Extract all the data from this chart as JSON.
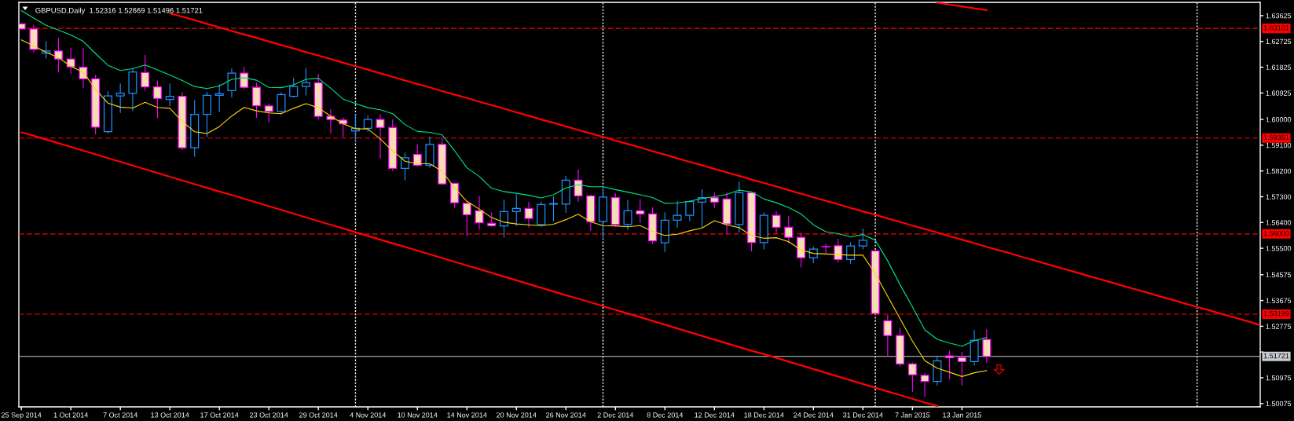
{
  "chart_data": {
    "type": "candlestick",
    "title": "GBPUSD,Daily  1.52316 1.52669 1.51496 1.51721",
    "categories": [
      "25 Sep 2014",
      null,
      null,
      null,
      "1 Oct 2014",
      null,
      null,
      null,
      "7 Oct 2014",
      null,
      null,
      null,
      "13 Oct 2014",
      null,
      null,
      null,
      "17 Oct 2014",
      null,
      null,
      null,
      "23 Oct 2014",
      null,
      null,
      null,
      "29 Oct 2014",
      null,
      null,
      null,
      "4 Nov 2014",
      null,
      null,
      null,
      "10 Nov 2014",
      null,
      null,
      null,
      "14 Nov 2014",
      null,
      null,
      null,
      "20 Nov 2014",
      null,
      null,
      null,
      "26 Nov 2014",
      null,
      null,
      null,
      "2 Dec 2014",
      null,
      null,
      null,
      "8 Dec 2014",
      null,
      null,
      null,
      "12 Dec 2014",
      null,
      null,
      null,
      "18 Dec 2014",
      null,
      null,
      null,
      "24 Dec 2014",
      null,
      null,
      null,
      "31 Dec 2014",
      null,
      null,
      null,
      "7 Jan 2015",
      null,
      null,
      null,
      "13 Jan 2015",
      null,
      null,
      null,
      null,
      null,
      null,
      null,
      null,
      null,
      null,
      null,
      null,
      null,
      null,
      null,
      null,
      null,
      null,
      null,
      null,
      null,
      null,
      null,
      null
    ],
    "ohlc": [
      [
        1.6334,
        1.6337,
        1.6314,
        1.6316
      ],
      [
        1.6316,
        1.633,
        1.6234,
        1.6245
      ],
      [
        1.6232,
        1.6274,
        1.6213,
        1.6239
      ],
      [
        1.6239,
        1.6285,
        1.6164,
        1.6211
      ],
      [
        1.6211,
        1.625,
        1.6159,
        1.6184
      ],
      [
        1.6182,
        1.625,
        1.6109,
        1.6142
      ],
      [
        1.6142,
        1.6156,
        1.5948,
        1.5973
      ],
      [
        1.5957,
        1.6098,
        1.5951,
        1.6082
      ],
      [
        1.6082,
        1.6126,
        1.6023,
        1.6092
      ],
      [
        1.6092,
        1.618,
        1.603,
        1.6166
      ],
      [
        1.6164,
        1.6225,
        1.61,
        1.6114
      ],
      [
        1.6114,
        1.6136,
        1.6004,
        1.6073
      ],
      [
        1.607,
        1.6126,
        1.6047,
        1.6081
      ],
      [
        1.6081,
        1.6096,
        1.5894,
        1.5901
      ],
      [
        1.5901,
        1.6068,
        1.587,
        1.6018
      ],
      [
        1.6018,
        1.6096,
        1.5939,
        1.6084
      ],
      [
        1.6084,
        1.6123,
        1.6026,
        1.609
      ],
      [
        1.6101,
        1.6178,
        1.6077,
        1.6162
      ],
      [
        1.6162,
        1.6184,
        1.6106,
        1.6112
      ],
      [
        1.6112,
        1.6128,
        1.6006,
        1.6048
      ],
      [
        1.6047,
        1.6056,
        1.599,
        1.6028
      ],
      [
        1.6028,
        1.6095,
        1.6018,
        1.6087
      ],
      [
        1.6081,
        1.6145,
        1.6077,
        1.6115
      ],
      [
        1.6115,
        1.618,
        1.6084,
        1.6128
      ],
      [
        1.6128,
        1.6159,
        1.6,
        1.6011
      ],
      [
        1.6011,
        1.6035,
        1.595,
        1.6
      ],
      [
        1.5998,
        1.6007,
        1.5939,
        1.5985
      ],
      [
        1.596,
        1.6018,
        1.5923,
        1.5969
      ],
      [
        1.5969,
        1.6014,
        1.5957,
        1.6
      ],
      [
        1.6,
        1.6018,
        1.5864,
        1.5972
      ],
      [
        1.5972,
        1.6,
        1.582,
        1.5829
      ],
      [
        1.5829,
        1.5884,
        1.5787,
        1.5866
      ],
      [
        1.5878,
        1.5913,
        1.5835,
        1.584
      ],
      [
        1.584,
        1.594,
        1.5831,
        1.5913
      ],
      [
        1.5913,
        1.5937,
        1.5772,
        1.5775
      ],
      [
        1.5777,
        1.5777,
        1.5692,
        1.5709
      ],
      [
        1.5707,
        1.5707,
        1.5592,
        1.5667
      ],
      [
        1.5681,
        1.5732,
        1.5615,
        1.5639
      ],
      [
        1.5637,
        1.5676,
        1.5625,
        1.5629
      ],
      [
        1.5628,
        1.572,
        1.5587,
        1.5678
      ],
      [
        1.5678,
        1.5738,
        1.5628,
        1.5689
      ],
      [
        1.5689,
        1.5713,
        1.5623,
        1.5654
      ],
      [
        1.5633,
        1.5713,
        1.5626,
        1.5703
      ],
      [
        1.5704,
        1.5731,
        1.5644,
        1.5706
      ],
      [
        1.5704,
        1.5803,
        1.5674,
        1.5788
      ],
      [
        1.5788,
        1.5825,
        1.5713,
        1.5733
      ],
      [
        1.5733,
        1.5738,
        1.5611,
        1.5643
      ],
      [
        1.5644,
        1.5768,
        1.5582,
        1.5729
      ],
      [
        1.5727,
        1.5742,
        1.5626,
        1.5633
      ],
      [
        1.5633,
        1.5718,
        1.5614,
        1.5681
      ],
      [
        1.5681,
        1.5722,
        1.5638,
        1.567
      ],
      [
        1.567,
        1.5693,
        1.5565,
        1.5576
      ],
      [
        1.5569,
        1.5676,
        1.5537,
        1.5648
      ],
      [
        1.5648,
        1.5715,
        1.5622,
        1.5665
      ],
      [
        1.5665,
        1.5718,
        1.5644,
        1.5713
      ],
      [
        1.5711,
        1.5756,
        1.5622,
        1.5727
      ],
      [
        1.5727,
        1.5745,
        1.569,
        1.5711
      ],
      [
        1.5722,
        1.5745,
        1.5598,
        1.5635
      ],
      [
        1.5633,
        1.5783,
        1.5605,
        1.5744
      ],
      [
        1.5744,
        1.5748,
        1.5539,
        1.557
      ],
      [
        1.557,
        1.5676,
        1.5546,
        1.5665
      ],
      [
        1.5665,
        1.5679,
        1.5603,
        1.5623
      ],
      [
        1.5623,
        1.5663,
        1.5567,
        1.5588
      ],
      [
        1.5588,
        1.5605,
        1.5483,
        1.5517
      ],
      [
        1.5517,
        1.5556,
        1.5498,
        1.5547
      ],
      [
        1.5556,
        1.5565,
        1.5532,
        1.5555
      ],
      [
        1.5559,
        1.5583,
        1.5501,
        1.5511
      ],
      [
        1.5511,
        1.5571,
        1.5496,
        1.5558
      ],
      [
        1.5558,
        1.5619,
        1.5546,
        1.5578
      ],
      [
        1.5541,
        1.5541,
        1.5321,
        1.5322
      ],
      [
        1.5297,
        1.5318,
        1.5172,
        1.5245
      ],
      [
        1.5245,
        1.5271,
        1.5137,
        1.5146
      ],
      [
        1.5146,
        1.5151,
        1.5049,
        1.5108
      ],
      [
        1.5106,
        1.5113,
        1.5031,
        1.5085
      ],
      [
        1.5085,
        1.5171,
        1.5071,
        1.5157
      ],
      [
        1.5174,
        1.5193,
        1.5093,
        1.5168
      ],
      [
        1.5168,
        1.5188,
        1.5071,
        1.5154
      ],
      [
        1.5154,
        1.5265,
        1.514,
        1.5228
      ],
      [
        1.52316,
        1.52669,
        1.51496,
        1.51721
      ],
      null,
      null,
      null,
      null,
      null,
      null,
      null,
      null,
      null,
      null,
      null,
      null,
      null,
      null,
      null,
      null,
      null,
      null,
      null,
      null,
      null,
      null
    ],
    "color": "#f5deb3",
    "colors": [
      "#ff00ff",
      "#ff00ff",
      "#1e90ff",
      "#ff00ff",
      "#ff00ff",
      "#ff00ff",
      "#ff00ff",
      "#1e90ff",
      "#1e90ff",
      "#1e90ff",
      "#ff00ff",
      "#ff00ff",
      "#1e90ff",
      "#ff00ff",
      "#1e90ff",
      "#1e90ff",
      "#1e90ff",
      "#1e90ff",
      "#ff00ff",
      "#ff00ff",
      "#ff00ff",
      "#1e90ff",
      "#1e90ff",
      "#1e90ff",
      "#ff00ff",
      "#ff00ff",
      "#ff00ff",
      "#1e90ff",
      "#1e90ff",
      "#ff00ff",
      "#ff00ff",
      "#1e90ff",
      "#ff00ff",
      "#1e90ff",
      "#ff00ff",
      "#ff00ff",
      "#ff00ff",
      "#ff00ff",
      "#ff00ff",
      "#1e90ff",
      "#1e90ff",
      "#ff00ff",
      "#1e90ff",
      "#1e90ff",
      "#1e90ff",
      "#ff00ff",
      "#ff00ff",
      "#1e90ff",
      "#ff00ff",
      "#1e90ff",
      "#ff00ff",
      "#ff00ff",
      "#1e90ff",
      "#1e90ff",
      "#1e90ff",
      "#1e90ff",
      "#ff00ff",
      "#ff00ff",
      "#1e90ff",
      "#ff00ff",
      "#1e90ff",
      "#ff00ff",
      "#ff00ff",
      "#ff00ff",
      "#1e90ff",
      "#ff00ff",
      "#ff00ff",
      "#1e90ff",
      "#1e90ff",
      "#ff00ff",
      "#ff00ff",
      "#ff00ff",
      "#ff00ff",
      "#ff00ff",
      "#1e90ff",
      "#ff00ff",
      "#ff00ff",
      "#1e90ff",
      "#ff00ff",
      null,
      null,
      null,
      null,
      null,
      null,
      null,
      null,
      null,
      null,
      null,
      null,
      null,
      null,
      null,
      null,
      null,
      null,
      null,
      null,
      null,
      null
    ],
    "series": [
      {
        "type": "line",
        "color": "#00e684",
        "values": [
          1.638,
          1.6354,
          1.6329,
          1.6312,
          1.6295,
          1.6273,
          1.623,
          1.6189,
          1.6171,
          1.6177,
          1.619,
          1.6173,
          1.6155,
          1.6136,
          1.6115,
          1.6108,
          1.6117,
          1.614,
          1.6146,
          1.6137,
          1.6112,
          1.6111,
          1.6121,
          1.614,
          1.6144,
          1.6109,
          1.6071,
          1.6056,
          1.6041,
          1.6034,
          1.602,
          1.5982,
          1.5958,
          1.5955,
          1.5946,
          1.5891,
          1.5831,
          1.5801,
          1.576,
          1.5748,
          1.5742,
          1.5735,
          1.5726,
          1.5737,
          1.5761,
          1.5772,
          1.5765,
          1.5765,
          1.5755,
          1.5746,
          1.5737,
          1.5727,
          1.5707,
          1.5708,
          1.5714,
          1.5724,
          1.573,
          1.5738,
          1.5753,
          1.5747,
          1.5722,
          1.5709,
          1.5692,
          1.567,
          1.5632,
          1.5608,
          1.5601,
          1.559,
          1.5598,
          1.5578,
          1.5506,
          1.5423,
          1.5345,
          1.5265,
          1.5232,
          1.5219,
          1.5208,
          1.5227,
          1.5239,
          null,
          null,
          null,
          null,
          null,
          null,
          null,
          null,
          null,
          null,
          null,
          null,
          null,
          null,
          null,
          null,
          null,
          null,
          null,
          null,
          null,
          null
        ]
      },
      {
        "type": "line",
        "color": "#ffd700",
        "values": [
          1.6278,
          1.6257,
          1.6235,
          1.6216,
          1.6186,
          1.6165,
          1.6105,
          1.6057,
          1.6043,
          1.604,
          1.606,
          1.6042,
          1.6039,
          1.5993,
          1.5957,
          1.5951,
          1.5975,
          1.6012,
          1.6042,
          1.603,
          1.6023,
          1.602,
          1.6039,
          1.6055,
          1.6041,
          1.6011,
          1.5985,
          1.5967,
          1.5967,
          1.5932,
          1.589,
          1.5854,
          1.5845,
          1.5845,
          1.5819,
          1.5761,
          1.5714,
          1.5687,
          1.5657,
          1.5641,
          1.5635,
          1.5632,
          1.5629,
          1.5634,
          1.565,
          1.5669,
          1.5642,
          1.5629,
          1.5628,
          1.5625,
          1.5629,
          1.5609,
          1.5595,
          1.5599,
          1.5611,
          1.5621,
          1.5646,
          1.5632,
          1.5622,
          1.5594,
          1.5585,
          1.5587,
          1.5573,
          1.5544,
          1.5532,
          1.553,
          1.5528,
          1.5526,
          1.5526,
          1.5461,
          1.5382,
          1.5304,
          1.5226,
          1.5157,
          1.5131,
          1.5117,
          1.5102,
          1.5115,
          1.5123,
          null,
          null,
          null,
          null,
          null,
          null,
          null,
          null,
          null,
          null,
          null,
          null,
          null,
          null,
          null,
          null,
          null,
          null,
          null,
          null,
          null,
          null
        ]
      },
      {
        "type": "line",
        "color": "#ff0000",
        "values": [
          null,
          null,
          null,
          null,
          null,
          null,
          null,
          null,
          null,
          null,
          null,
          null,
          1.6371,
          1.6359,
          1.6347,
          1.6334,
          1.6322,
          1.6309,
          1.6297,
          1.6285,
          1.6272,
          1.626,
          1.6248,
          1.6235,
          1.6223,
          1.6211,
          1.6198,
          1.6186,
          1.6174,
          1.6161,
          1.6149,
          1.6136,
          1.6124,
          1.6112,
          1.6099,
          1.6087,
          1.6075,
          1.6062,
          1.605,
          1.6038,
          1.6025,
          1.6013,
          1.6,
          1.5988,
          1.5976,
          1.5963,
          1.5951,
          1.5939,
          1.5926,
          1.5914,
          1.5902,
          1.5889,
          1.5877,
          1.5864,
          1.5852,
          1.584,
          1.5827,
          1.5815,
          1.5803,
          1.579,
          1.5778,
          1.5766,
          1.5753,
          1.5741,
          1.5728,
          1.5716,
          1.5704,
          1.5691,
          1.5679,
          1.5667,
          1.5654,
          1.5642,
          1.5629,
          1.5617,
          1.5605,
          1.5592,
          1.558,
          1.5568,
          1.5555,
          1.5543,
          1.5531,
          1.5518,
          1.5506,
          1.5493,
          1.5481,
          1.5469,
          1.5456,
          1.5444,
          1.5432,
          1.5419,
          1.5407,
          1.5395,
          1.5382,
          1.537,
          1.5357,
          1.5345,
          1.5333,
          1.532,
          1.5308,
          1.5296,
          1.5283
        ]
      },
      {
        "type": "line",
        "color": "#ff0000",
        "values": [
          1.5955,
          1.5943,
          1.593,
          1.5917,
          1.5904,
          1.5891,
          1.5878,
          1.5865,
          1.5852,
          1.5839,
          1.5826,
          1.5813,
          1.58,
          1.5787,
          1.5774,
          1.5761,
          1.5748,
          1.5736,
          1.5723,
          1.571,
          1.5697,
          1.5684,
          1.5671,
          1.5658,
          1.5645,
          1.5632,
          1.5619,
          1.5606,
          1.5593,
          1.558,
          1.5567,
          1.5555,
          1.5542,
          1.5529,
          1.5516,
          1.5503,
          1.549,
          1.5477,
          1.5464,
          1.5451,
          1.5438,
          1.5425,
          1.5412,
          1.5399,
          1.5386,
          1.5374,
          1.5361,
          1.5348,
          1.5335,
          1.5322,
          1.5309,
          1.5296,
          1.5283,
          1.527,
          1.5257,
          1.5244,
          1.5231,
          1.5218,
          1.5205,
          1.5192,
          1.518,
          1.5167,
          1.5154,
          1.5141,
          1.5128,
          1.5115,
          1.5102,
          1.5089,
          1.5076,
          1.5063,
          1.505,
          1.5037,
          1.5024,
          1.5011,
          1.4999,
          null,
          null,
          null,
          null,
          null,
          null,
          null,
          null,
          null,
          null,
          null,
          null,
          null,
          null,
          null,
          null,
          null,
          null,
          null,
          null,
          null,
          null,
          null,
          null,
          null,
          null
        ]
      },
      {
        "type": "line",
        "color": "#ff0000",
        "values": [
          null,
          null,
          null,
          null,
          null,
          null,
          null,
          null,
          null,
          null,
          null,
          null,
          null,
          null,
          null,
          null,
          null,
          null,
          null,
          null,
          null,
          null,
          null,
          null,
          null,
          null,
          null,
          null,
          null,
          null,
          null,
          null,
          null,
          null,
          null,
          null,
          null,
          null,
          null,
          null,
          null,
          null,
          null,
          null,
          null,
          null,
          null,
          null,
          null,
          null,
          null,
          null,
          null,
          null,
          null,
          null,
          null,
          null,
          null,
          null,
          null,
          null,
          null,
          null,
          null,
          null,
          null,
          null,
          null,
          null,
          null,
          null,
          null,
          null,
          1.6408,
          1.6401,
          1.6395,
          1.6388,
          1.6382,
          null,
          null,
          null,
          null,
          null,
          null,
          null,
          null,
          null,
          null,
          null,
          null,
          null,
          null,
          null,
          null,
          null,
          null,
          null,
          null,
          null,
          null
        ]
      }
    ],
    "ref_lines": [
      {
        "axis": "y",
        "value": 1.63181,
        "label": "1.63181",
        "color": "#ff0000",
        "line_style": "dashed"
      },
      {
        "axis": "y",
        "value": 1.59351,
        "label": "1.59351",
        "color": "#ff0000",
        "line_style": "dashed"
      },
      {
        "axis": "y",
        "value": 1.56,
        "label": "1.56000",
        "color": "#ff0000",
        "line_style": "dashed"
      },
      {
        "axis": "y",
        "value": 1.53199,
        "label": "1.53199",
        "color": "#ff0000",
        "line_style": "dashed"
      },
      {
        "axis": "y",
        "value": 1.51721,
        "label": "1.51721",
        "color": "#c8ccd0",
        "line_style": "solid"
      }
    ],
    "grid": "x",
    "ylim": [
      1.4996,
      1.6409
    ],
    "yticks": [
      1.63625,
      1.62725,
      1.61825,
      1.60925,
      {
        "value": 1.6,
        "label": "1.60000"
      },
      {
        "value": 1.591,
        "label": "1.59100"
      },
      {
        "value": 1.582,
        "label": "1.58200"
      },
      {
        "value": 1.573,
        "label": "1.57300"
      },
      {
        "value": 1.564,
        "label": "1.56400"
      },
      {
        "value": 1.555,
        "label": "1.55500"
      },
      1.54575,
      1.53675,
      1.52775,
      {
        "value": 1.51875,
        "label": null
      },
      1.50975,
      1.50075
    ]
  }
}
